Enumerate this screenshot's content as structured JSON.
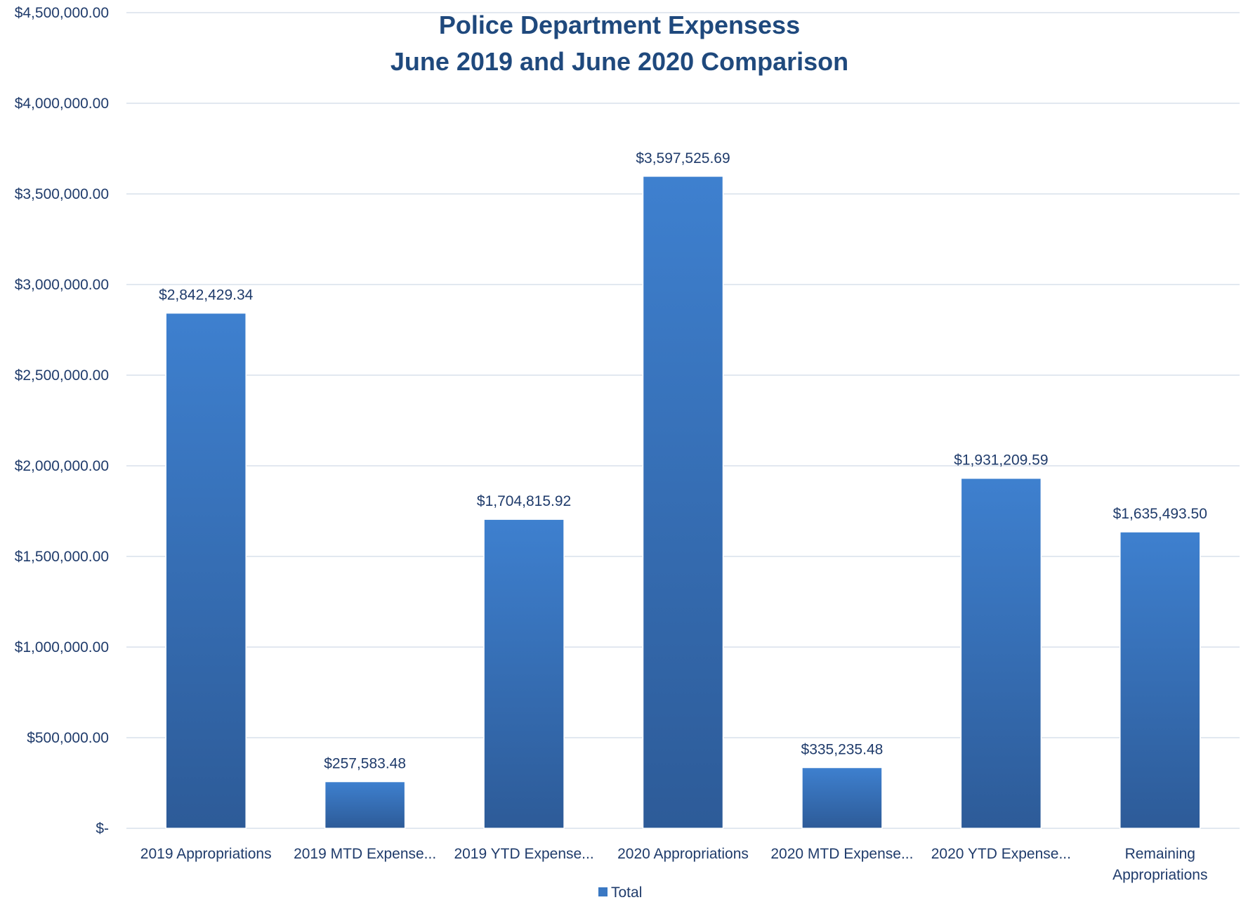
{
  "chart_data": {
    "type": "bar",
    "title": "Police Department Expensess",
    "subtitle": "June 2019 and June 2020 Comparison",
    "categories": [
      "2019 Appropriations",
      "2019 MTD Expense...",
      "2019 YTD Expense...",
      "2020 Appropriations",
      "2020 MTD Expense...",
      "2020 YTD Expense...",
      "Remaining Appropriations"
    ],
    "series": [
      {
        "name": "Total",
        "values": [
          2842429.34,
          257583.48,
          1704815.92,
          3597525.69,
          335235.48,
          1931209.59,
          1635493.5
        ]
      }
    ],
    "data_labels": [
      "$2,842,429.34",
      "$257,583.48",
      "$1,704,815.92",
      "$3,597,525.69",
      "$335,235.48",
      "$1,931,209.59",
      "$1,635,493.50"
    ],
    "y_ticks": [
      0,
      500000,
      1000000,
      1500000,
      2000000,
      2500000,
      3000000,
      3500000,
      4000000,
      4500000
    ],
    "y_tick_labels": [
      "$-",
      "$500,000.00",
      "$1,000,000.00",
      "$1,500,000.00",
      "$2,000,000.00",
      "$2,500,000.00",
      "$3,000,000.00",
      "$3,500,000.00",
      "$4,000,000.00",
      "$4,500,000.00"
    ],
    "ylim": [
      0,
      4500000
    ],
    "xlabel": "",
    "ylabel": "",
    "grid": true,
    "legend": "bottom",
    "colors": {
      "bar_top": "#3E80CF",
      "bar_bottom": "#2D5B98",
      "text": "#1F3B6B",
      "title": "#1F497D",
      "grid": "#D9E1EC",
      "legend_swatch": "#3A78C3"
    }
  }
}
